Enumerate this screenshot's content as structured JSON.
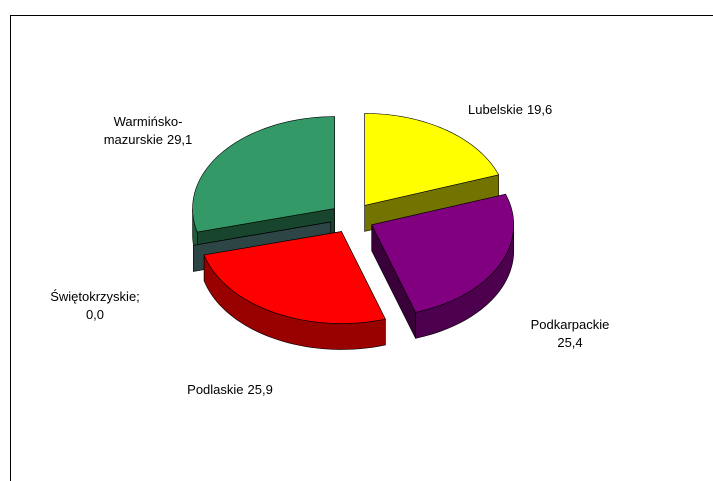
{
  "chart_data": {
    "type": "pie3d",
    "categories": [
      "Lubelskie",
      "Podkarpackie",
      "Podlaskie",
      "Świętokrzyskie;",
      "Warmińsko-mazurskie"
    ],
    "values": [
      19.6,
      25.4,
      25.9,
      0.0,
      29.1
    ],
    "value_labels": [
      "19,6",
      "25,4",
      "25,9",
      "0,0",
      "29,1"
    ],
    "colors": [
      "#ffff00",
      "#800080",
      "#ff0000",
      "#669999",
      "#339966"
    ]
  }
}
